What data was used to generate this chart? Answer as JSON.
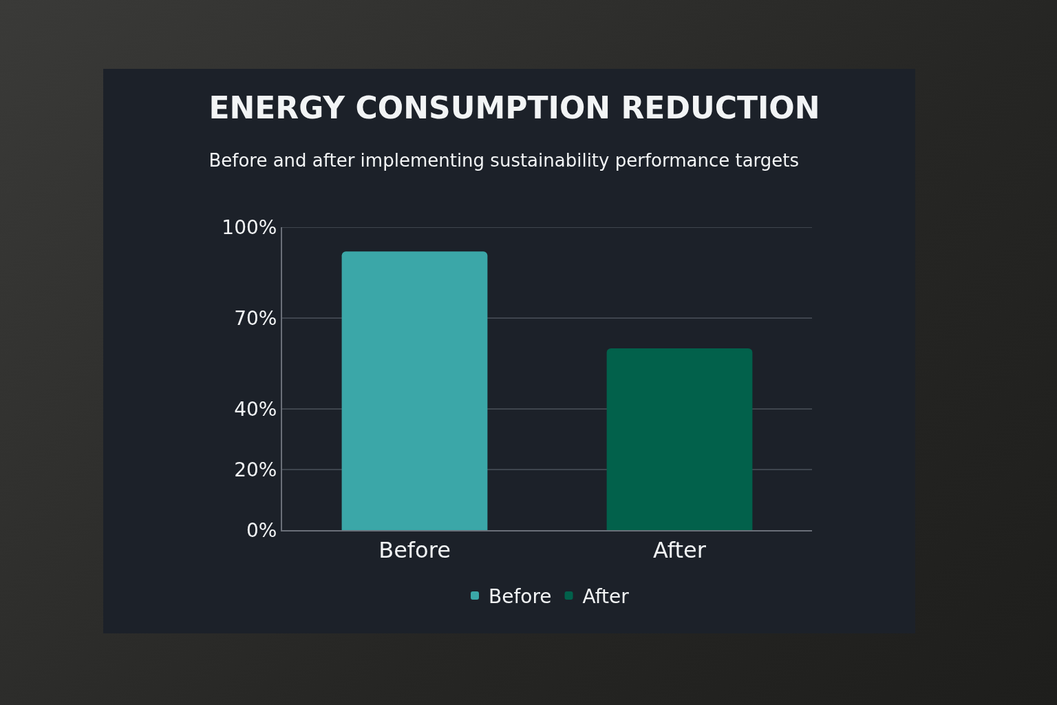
{
  "chart_data": {
    "type": "bar",
    "title": "ENERGY CONSUMPTION REDUCTION",
    "subtitle": "Before and after implementing sustainability performance targets",
    "categories": [
      "Before",
      "After"
    ],
    "series": [
      {
        "name": "Before",
        "color": "#3ba7a8",
        "values": [
          92,
          null
        ]
      },
      {
        "name": "After",
        "color": "#02614b",
        "values": [
          null,
          60
        ]
      }
    ],
    "ylim": [
      0,
      100
    ],
    "yticks": [
      {
        "value": 0,
        "label": "0%"
      },
      {
        "value": 20,
        "label": "20%"
      },
      {
        "value": 40,
        "label": "40%"
      },
      {
        "value": 70,
        "label": "70%"
      },
      {
        "value": 100,
        "label": "100%"
      }
    ],
    "grid": "y",
    "legend": "bottom"
  }
}
